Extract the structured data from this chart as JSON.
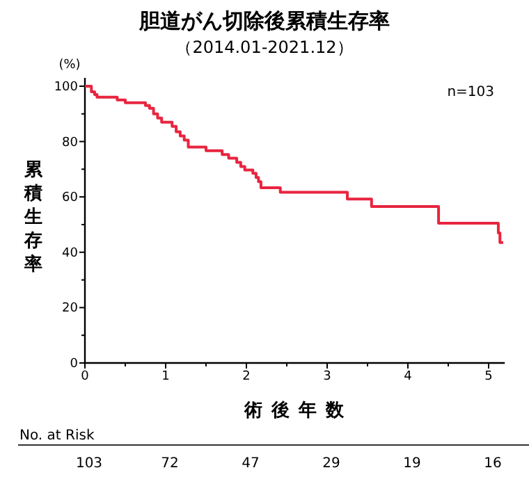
{
  "chart_data": {
    "type": "step",
    "title": "胆道がん切除後累積生存率",
    "subtitle": "（2014.01-2021.12）",
    "xlabel": "術後年数",
    "ylabel": "累積生存率",
    "annotations": [
      "(%)",
      "n=103",
      "No. at Risk",
      "103",
      "72",
      "47",
      "29",
      "19",
      "16"
    ],
    "series": [
      {
        "color": "#e8253f",
        "x": [
          0,
          0.08,
          0.12,
          0.15,
          0.4,
          0.5,
          0.75,
          0.8,
          0.85,
          0.9,
          0.95,
          1.08,
          1.13,
          1.18,
          1.23,
          1.28,
          1.5,
          1.7,
          1.78,
          1.88,
          1.93,
          1.98,
          2.08,
          2.12,
          2.15,
          2.18,
          2.42,
          3.25,
          3.55,
          4.38,
          5.12,
          5.14,
          5.18
        ],
        "values": [
          100,
          98,
          97,
          96,
          95,
          94,
          93,
          92,
          90,
          88.5,
          87,
          85.5,
          83.5,
          82,
          80.5,
          78,
          76.7,
          75.3,
          74,
          72.5,
          71,
          69.7,
          68.5,
          67,
          65.5,
          63.3,
          61.7,
          59.2,
          56.5,
          50.5,
          47,
          43.5,
          43.5
        ]
      }
    ],
    "xlim": [
      0,
      5.2
    ],
    "ylim": [
      0,
      103
    ],
    "xticks": [
      0,
      {
        "value": 0.5,
        "label": null
      },
      1,
      {
        "value": 1.5,
        "label": null
      },
      2,
      {
        "value": 2.5,
        "label": null
      },
      3,
      {
        "value": 3.5,
        "label": null
      },
      4,
      {
        "value": 4.5,
        "label": null
      },
      5
    ],
    "yticks": [
      0,
      {
        "value": 10,
        "label": null
      },
      20,
      {
        "value": 30,
        "label": null
      },
      40,
      {
        "value": 50,
        "label": null
      },
      60,
      {
        "value": 70,
        "label": null
      },
      80,
      {
        "value": 90,
        "label": null
      },
      100
    ],
    "line_style": "solid"
  }
}
